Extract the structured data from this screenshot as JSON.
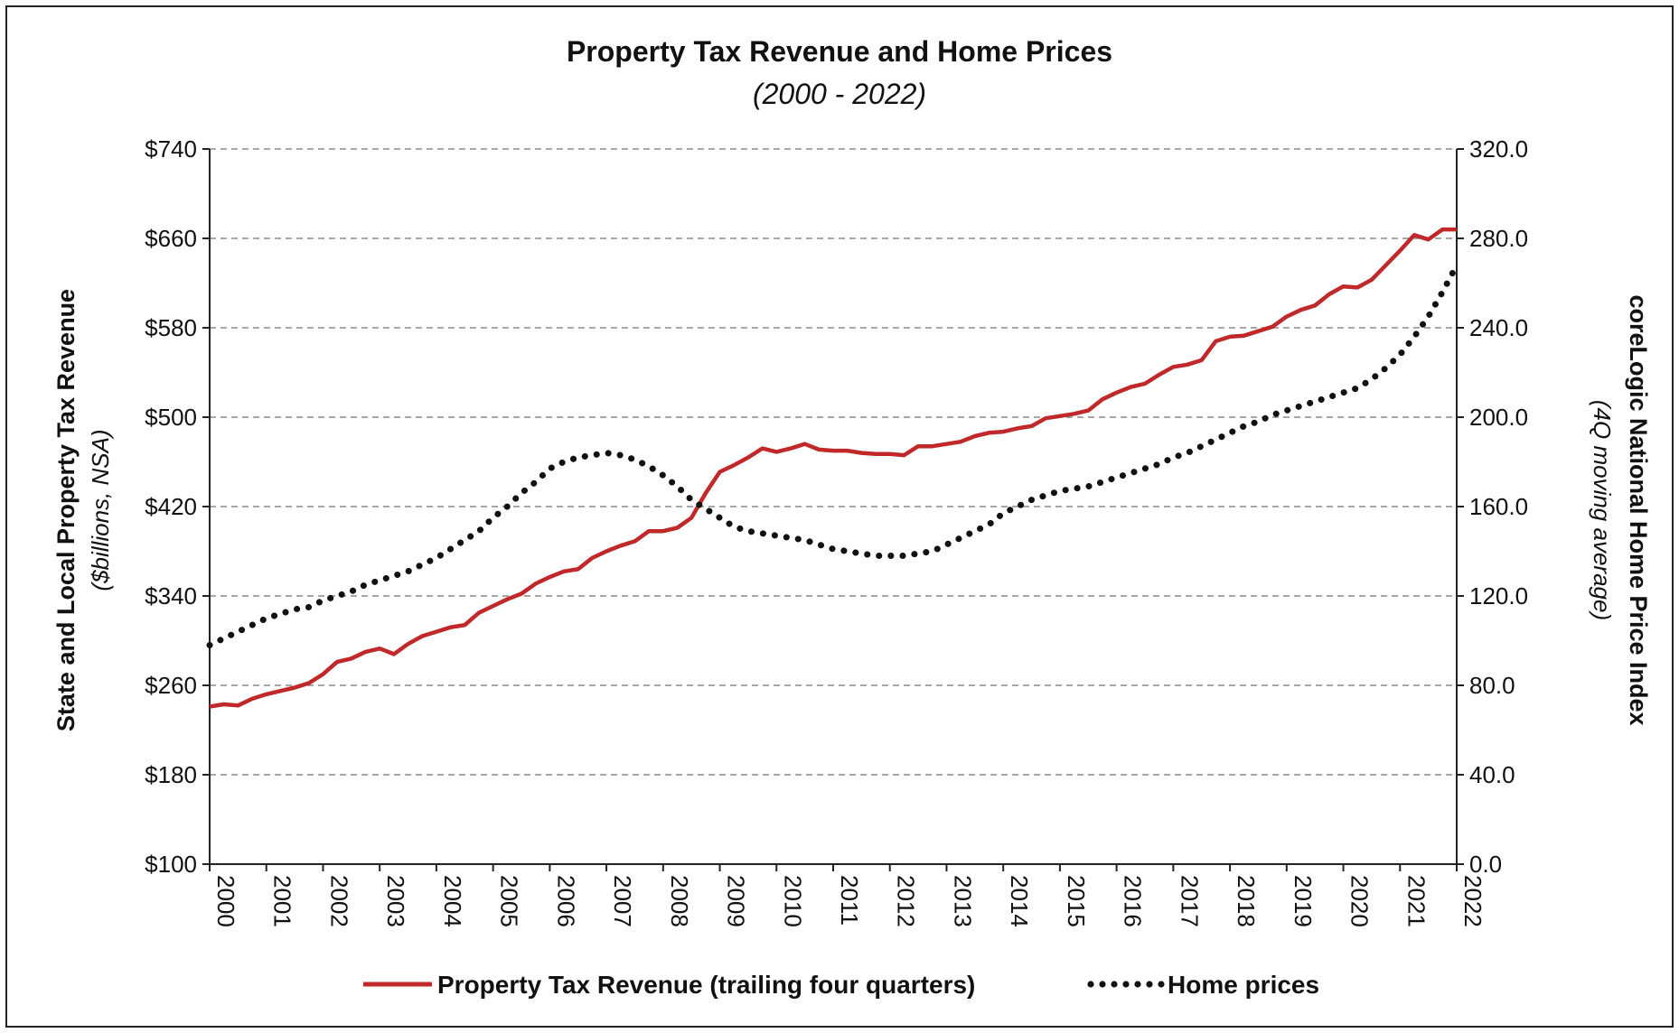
{
  "chart_data": {
    "type": "line",
    "title": "Property Tax Revenue and Home Prices",
    "subtitle": "(2000 - 2022)",
    "ylabel_left": "State and Local Property Tax Revenue",
    "ylabel_left_sub": "($billions, NSA)",
    "ylabel_right": "coreLogic National Home Price Index",
    "ylabel_right_sub": "(4Q moving average)",
    "ylim_left": [
      100,
      740
    ],
    "ylim_right": [
      0,
      320
    ],
    "xlim": [
      2000,
      2022
    ],
    "yticks_left": [
      "$740",
      "$660",
      "$580",
      "$500",
      "$420",
      "$340",
      "$260",
      "$180",
      "$100"
    ],
    "yticks_right": [
      "320.0",
      "280.0",
      "240.0",
      "200.0",
      "160.0",
      "120.0",
      "80.0",
      "40.0",
      "0.0"
    ],
    "xticks": [
      "2000",
      "2001",
      "2002",
      "2003",
      "2004",
      "2005",
      "2006",
      "2007",
      "2008",
      "2009",
      "2010",
      "2011",
      "2012",
      "2013",
      "2014",
      "2015",
      "2016",
      "2017",
      "2018",
      "2019",
      "2020",
      "2021",
      "2022"
    ],
    "grid": true,
    "legend_position": "bottom",
    "series": [
      {
        "name": "Property Tax Revenue (trailing four quarters)",
        "axis": "left",
        "style": "solid",
        "color": "#c0282a",
        "points": [
          [
            2000.0,
            241
          ],
          [
            2000.25,
            243
          ],
          [
            2000.5,
            242
          ],
          [
            2000.75,
            248
          ],
          [
            2001.0,
            252
          ],
          [
            2001.25,
            255
          ],
          [
            2001.5,
            258
          ],
          [
            2001.75,
            262
          ],
          [
            2002.0,
            270
          ],
          [
            2002.25,
            281
          ],
          [
            2002.5,
            284
          ],
          [
            2002.75,
            290
          ],
          [
            2003.0,
            293
          ],
          [
            2003.25,
            288
          ],
          [
            2003.5,
            297
          ],
          [
            2003.75,
            304
          ],
          [
            2004.0,
            308
          ],
          [
            2004.25,
            312
          ],
          [
            2004.5,
            314
          ],
          [
            2004.75,
            325
          ],
          [
            2005.0,
            331
          ],
          [
            2005.25,
            337
          ],
          [
            2005.5,
            342
          ],
          [
            2005.75,
            351
          ],
          [
            2006.0,
            357
          ],
          [
            2006.25,
            362
          ],
          [
            2006.5,
            364
          ],
          [
            2006.75,
            374
          ],
          [
            2007.0,
            380
          ],
          [
            2007.25,
            385
          ],
          [
            2007.5,
            389
          ],
          [
            2007.75,
            398
          ],
          [
            2008.0,
            398
          ],
          [
            2008.25,
            401
          ],
          [
            2008.5,
            410
          ],
          [
            2008.75,
            432
          ],
          [
            2009.0,
            451
          ],
          [
            2009.25,
            457
          ],
          [
            2009.5,
            464
          ],
          [
            2009.75,
            472
          ],
          [
            2010.0,
            469
          ],
          [
            2010.25,
            472
          ],
          [
            2010.5,
            476
          ],
          [
            2010.75,
            471
          ],
          [
            2011.0,
            470
          ],
          [
            2011.25,
            470
          ],
          [
            2011.5,
            468
          ],
          [
            2011.75,
            467
          ],
          [
            2012.0,
            467
          ],
          [
            2012.25,
            466
          ],
          [
            2012.5,
            474
          ],
          [
            2012.75,
            474
          ],
          [
            2013.0,
            476
          ],
          [
            2013.25,
            478
          ],
          [
            2013.5,
            483
          ],
          [
            2013.75,
            486
          ],
          [
            2014.0,
            487
          ],
          [
            2014.25,
            490
          ],
          [
            2014.5,
            492
          ],
          [
            2014.75,
            499
          ],
          [
            2015.0,
            501
          ],
          [
            2015.25,
            503
          ],
          [
            2015.5,
            506
          ],
          [
            2015.75,
            516
          ],
          [
            2016.0,
            522
          ],
          [
            2016.25,
            527
          ],
          [
            2016.5,
            530
          ],
          [
            2016.75,
            538
          ],
          [
            2017.0,
            545
          ],
          [
            2017.25,
            547
          ],
          [
            2017.5,
            551
          ],
          [
            2017.75,
            568
          ],
          [
            2018.0,
            572
          ],
          [
            2018.25,
            573
          ],
          [
            2018.5,
            577
          ],
          [
            2018.75,
            581
          ],
          [
            2019.0,
            590
          ],
          [
            2019.25,
            596
          ],
          [
            2019.5,
            600
          ],
          [
            2019.75,
            610
          ],
          [
            2020.0,
            617
          ],
          [
            2020.25,
            616
          ],
          [
            2020.5,
            623
          ],
          [
            2020.75,
            636
          ],
          [
            2021.0,
            649
          ],
          [
            2021.25,
            663
          ],
          [
            2021.5,
            659
          ],
          [
            2021.75,
            668
          ],
          [
            2022.0,
            668
          ]
        ]
      },
      {
        "name": "Home prices",
        "axis": "right",
        "style": "dotted",
        "color": "#111111",
        "points": [
          [
            2000.0,
            98
          ],
          [
            2000.25,
            101
          ],
          [
            2000.5,
            104
          ],
          [
            2000.75,
            107
          ],
          [
            2001.0,
            110
          ],
          [
            2001.25,
            112
          ],
          [
            2001.5,
            114
          ],
          [
            2001.75,
            115
          ],
          [
            2002.0,
            118
          ],
          [
            2002.25,
            120
          ],
          [
            2002.5,
            122
          ],
          [
            2002.75,
            125
          ],
          [
            2003.0,
            127
          ],
          [
            2003.25,
            129
          ],
          [
            2003.5,
            131
          ],
          [
            2003.75,
            134
          ],
          [
            2004.0,
            137
          ],
          [
            2004.25,
            141
          ],
          [
            2004.5,
            145
          ],
          [
            2004.75,
            149
          ],
          [
            2005.0,
            155
          ],
          [
            2005.25,
            160
          ],
          [
            2005.5,
            166
          ],
          [
            2005.75,
            171
          ],
          [
            2006.0,
            177
          ],
          [
            2006.25,
            180
          ],
          [
            2006.5,
            182
          ],
          [
            2006.75,
            183
          ],
          [
            2007.0,
            184
          ],
          [
            2007.25,
            183
          ],
          [
            2007.5,
            181
          ],
          [
            2007.75,
            178
          ],
          [
            2008.0,
            174
          ],
          [
            2008.25,
            169
          ],
          [
            2008.5,
            163
          ],
          [
            2008.75,
            159
          ],
          [
            2009.0,
            155
          ],
          [
            2009.25,
            151
          ],
          [
            2009.5,
            149
          ],
          [
            2009.75,
            148
          ],
          [
            2010.0,
            147
          ],
          [
            2010.25,
            146
          ],
          [
            2010.5,
            145
          ],
          [
            2010.75,
            143
          ],
          [
            2011.0,
            141
          ],
          [
            2011.25,
            140
          ],
          [
            2011.5,
            139
          ],
          [
            2011.75,
            138
          ],
          [
            2012.0,
            138
          ],
          [
            2012.25,
            138
          ],
          [
            2012.5,
            139
          ],
          [
            2012.75,
            140
          ],
          [
            2013.0,
            143
          ],
          [
            2013.25,
            146
          ],
          [
            2013.5,
            149
          ],
          [
            2013.75,
            152
          ],
          [
            2014.0,
            157
          ],
          [
            2014.25,
            160
          ],
          [
            2014.5,
            163
          ],
          [
            2014.75,
            165
          ],
          [
            2015.0,
            167
          ],
          [
            2015.25,
            168
          ],
          [
            2015.5,
            169
          ],
          [
            2015.75,
            171
          ],
          [
            2016.0,
            173
          ],
          [
            2016.25,
            175
          ],
          [
            2016.5,
            177
          ],
          [
            2016.75,
            179
          ],
          [
            2017.0,
            182
          ],
          [
            2017.25,
            184
          ],
          [
            2017.5,
            187
          ],
          [
            2017.75,
            190
          ],
          [
            2018.0,
            193
          ],
          [
            2018.25,
            196
          ],
          [
            2018.5,
            198
          ],
          [
            2018.75,
            201
          ],
          [
            2019.0,
            203
          ],
          [
            2019.25,
            205
          ],
          [
            2019.5,
            207
          ],
          [
            2019.75,
            209
          ],
          [
            2020.0,
            211
          ],
          [
            2020.25,
            213
          ],
          [
            2020.5,
            217
          ],
          [
            2020.75,
            222
          ],
          [
            2021.0,
            228
          ],
          [
            2021.25,
            236
          ],
          [
            2021.5,
            245
          ],
          [
            2021.75,
            256
          ],
          [
            2022.0,
            268
          ]
        ]
      }
    ]
  }
}
